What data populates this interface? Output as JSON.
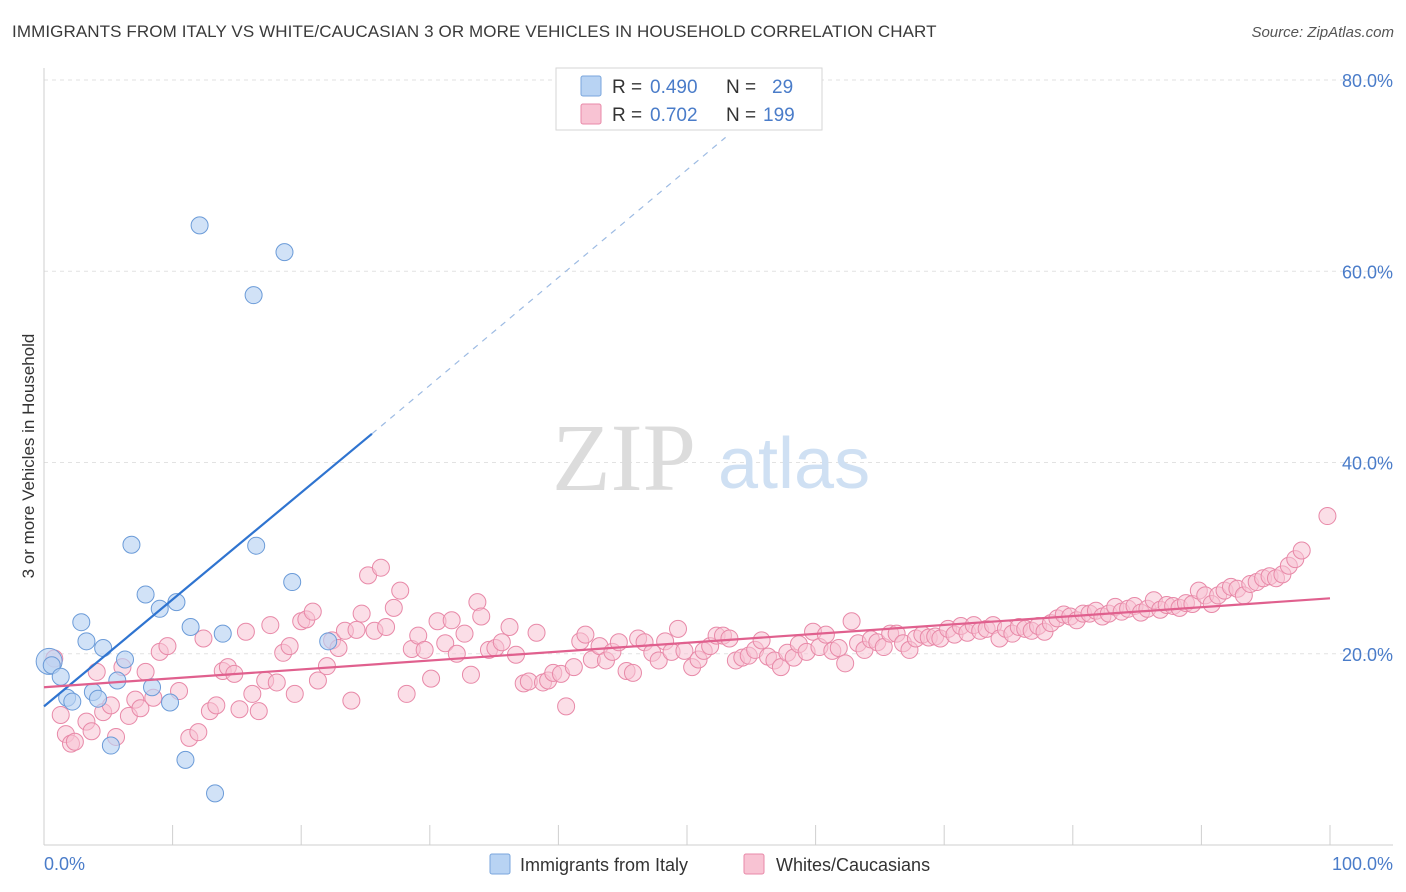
{
  "title": "IMMIGRANTS FROM ITALY VS WHITE/CAUCASIAN 3 OR MORE VEHICLES IN HOUSEHOLD CORRELATION CHART",
  "source": "Source: ZipAtlas.com",
  "watermark": {
    "zip": "ZIP",
    "atlas": "atlas"
  },
  "colors": {
    "blue": "#4a7cc9",
    "blue_fill": "#b8d3f3",
    "blue_line": "#2f74d0",
    "pink_fill": "#f8c3d3",
    "pink_line": "#e0608e",
    "pink_stroke": "#e889a8"
  },
  "legend": {
    "r_label": "R =",
    "n_label": "N =",
    "items": [
      {
        "r": "0.490",
        "n": "29"
      },
      {
        "r": "0.702",
        "n": "199"
      }
    ]
  },
  "bottom_legend": [
    "Immigrants from Italy",
    "Whites/Caucasians"
  ],
  "chart_data": {
    "type": "scatter",
    "title": "IMMIGRANTS FROM ITALY VS WHITE/CAUCASIAN 3 OR MORE VEHICLES IN HOUSEHOLD CORRELATION CHART",
    "xlabel": "",
    "ylabel": "3 or more Vehicles in Household",
    "xlim": [
      0,
      100
    ],
    "ylim": [
      0,
      80
    ],
    "x_tick_labels": [
      "0.0%",
      "100.0%"
    ],
    "y_tick_labels": [
      "20.0%",
      "40.0%",
      "60.0%",
      "80.0%"
    ],
    "y_ticks": [
      20,
      40,
      60,
      80
    ],
    "grid": true,
    "legend_position": "top-center",
    "series": [
      {
        "name": "Immigrants from Italy",
        "r": 0.49,
        "n": 29,
        "trend": {
          "x0": 0,
          "y0": 14.5,
          "x1": 25.5,
          "y1": 43,
          "dashed_to_x": 53,
          "dashed_to_y": 74
        },
        "points": [
          [
            0.4,
            19.2
          ],
          [
            0.6,
            18.8
          ],
          [
            1.3,
            17.6
          ],
          [
            1.8,
            15.4
          ],
          [
            2.2,
            15.0
          ],
          [
            2.9,
            23.3
          ],
          [
            3.3,
            21.3
          ],
          [
            3.8,
            16.0
          ],
          [
            4.2,
            15.3
          ],
          [
            4.6,
            20.6
          ],
          [
            5.2,
            10.4
          ],
          [
            5.7,
            17.2
          ],
          [
            6.3,
            19.4
          ],
          [
            6.8,
            31.4
          ],
          [
            7.9,
            26.2
          ],
          [
            8.4,
            16.5
          ],
          [
            9.0,
            24.7
          ],
          [
            9.8,
            14.9
          ],
          [
            10.3,
            25.4
          ],
          [
            11.0,
            8.9
          ],
          [
            11.4,
            22.8
          ],
          [
            12.1,
            64.8
          ],
          [
            13.3,
            5.4
          ],
          [
            13.9,
            22.1
          ],
          [
            16.3,
            57.5
          ],
          [
            16.5,
            31.3
          ],
          [
            18.7,
            62.0
          ],
          [
            19.3,
            27.5
          ],
          [
            22.1,
            21.3
          ]
        ]
      },
      {
        "name": "Whites/Caucasians",
        "r": 0.702,
        "n": 199,
        "trend": {
          "x0": 0,
          "y0": 16.5,
          "x1": 100,
          "y1": 25.8
        },
        "points": [
          [
            0.8,
            19.5
          ],
          [
            1.3,
            13.6
          ],
          [
            1.7,
            11.6
          ],
          [
            2.1,
            10.6
          ],
          [
            2.4,
            10.8
          ],
          [
            3.3,
            12.9
          ],
          [
            3.7,
            11.9
          ],
          [
            4.1,
            18.1
          ],
          [
            4.6,
            13.9
          ],
          [
            5.2,
            14.6
          ],
          [
            5.6,
            11.3
          ],
          [
            6.1,
            18.6
          ],
          [
            6.6,
            13.5
          ],
          [
            7.1,
            15.2
          ],
          [
            7.5,
            14.3
          ],
          [
            7.9,
            18.1
          ],
          [
            8.5,
            15.4
          ],
          [
            9.0,
            20.2
          ],
          [
            9.6,
            20.8
          ],
          [
            10.5,
            16.1
          ],
          [
            11.3,
            11.2
          ],
          [
            12.0,
            11.8
          ],
          [
            12.4,
            21.6
          ],
          [
            12.9,
            14.0
          ],
          [
            13.4,
            14.6
          ],
          [
            13.9,
            18.2
          ],
          [
            14.3,
            18.6
          ],
          [
            14.8,
            17.9
          ],
          [
            15.2,
            14.2
          ],
          [
            15.7,
            22.3
          ],
          [
            16.2,
            15.8
          ],
          [
            16.7,
            14.0
          ],
          [
            17.2,
            17.2
          ],
          [
            17.6,
            23.0
          ],
          [
            18.1,
            17.0
          ],
          [
            18.6,
            20.1
          ],
          [
            19.1,
            20.8
          ],
          [
            19.5,
            15.8
          ],
          [
            20.0,
            23.4
          ],
          [
            20.4,
            23.6
          ],
          [
            20.9,
            24.4
          ],
          [
            21.3,
            17.2
          ],
          [
            22.0,
            18.7
          ],
          [
            22.4,
            21.4
          ],
          [
            22.9,
            20.6
          ],
          [
            23.4,
            22.4
          ],
          [
            23.9,
            15.1
          ],
          [
            24.3,
            22.5
          ],
          [
            24.7,
            24.2
          ],
          [
            25.2,
            28.2
          ],
          [
            25.7,
            22.4
          ],
          [
            26.2,
            29.0
          ],
          [
            26.6,
            22.8
          ],
          [
            27.2,
            24.8
          ],
          [
            27.7,
            26.6
          ],
          [
            28.2,
            15.8
          ],
          [
            28.6,
            20.5
          ],
          [
            29.1,
            21.9
          ],
          [
            29.6,
            20.4
          ],
          [
            30.1,
            17.4
          ],
          [
            30.6,
            23.4
          ],
          [
            31.2,
            21.1
          ],
          [
            31.7,
            23.5
          ],
          [
            32.1,
            20.0
          ],
          [
            32.7,
            22.1
          ],
          [
            33.2,
            17.8
          ],
          [
            33.7,
            25.4
          ],
          [
            34.0,
            23.9
          ],
          [
            34.6,
            20.4
          ],
          [
            35.1,
            20.6
          ],
          [
            35.6,
            21.2
          ],
          [
            36.2,
            22.8
          ],
          [
            36.7,
            19.9
          ],
          [
            37.3,
            16.9
          ],
          [
            37.7,
            17.1
          ],
          [
            38.3,
            22.2
          ],
          [
            38.8,
            17.0
          ],
          [
            39.2,
            17.2
          ],
          [
            39.6,
            18.0
          ],
          [
            40.2,
            17.9
          ],
          [
            40.6,
            14.5
          ],
          [
            41.2,
            18.6
          ],
          [
            41.7,
            21.3
          ],
          [
            42.1,
            22.0
          ],
          [
            42.6,
            19.4
          ],
          [
            43.2,
            20.8
          ],
          [
            43.7,
            19.3
          ],
          [
            44.2,
            20.2
          ],
          [
            44.7,
            21.2
          ],
          [
            45.3,
            18.2
          ],
          [
            45.8,
            18.0
          ],
          [
            46.2,
            21.6
          ],
          [
            46.7,
            21.2
          ],
          [
            47.3,
            20.1
          ],
          [
            47.8,
            19.3
          ],
          [
            48.3,
            21.3
          ],
          [
            48.8,
            20.2
          ],
          [
            49.3,
            22.6
          ],
          [
            49.8,
            20.3
          ],
          [
            50.4,
            18.6
          ],
          [
            50.9,
            19.4
          ],
          [
            51.3,
            20.3
          ],
          [
            51.8,
            20.8
          ],
          [
            52.3,
            21.9
          ],
          [
            52.8,
            21.9
          ],
          [
            53.3,
            21.6
          ],
          [
            53.8,
            19.3
          ],
          [
            54.3,
            19.6
          ],
          [
            54.8,
            19.8
          ],
          [
            55.3,
            20.4
          ],
          [
            55.8,
            21.4
          ],
          [
            56.3,
            19.7
          ],
          [
            56.8,
            19.3
          ],
          [
            57.3,
            18.6
          ],
          [
            57.8,
            20.1
          ],
          [
            58.3,
            19.6
          ],
          [
            58.7,
            21.0
          ],
          [
            59.3,
            20.2
          ],
          [
            59.8,
            22.3
          ],
          [
            60.3,
            20.7
          ],
          [
            60.8,
            22.0
          ],
          [
            61.3,
            20.3
          ],
          [
            61.8,
            20.6
          ],
          [
            62.3,
            19.0
          ],
          [
            62.8,
            23.4
          ],
          [
            63.3,
            21.1
          ],
          [
            63.8,
            20.4
          ],
          [
            64.3,
            21.5
          ],
          [
            64.8,
            21.2
          ],
          [
            65.3,
            20.7
          ],
          [
            65.8,
            22.1
          ],
          [
            66.3,
            22.1
          ],
          [
            66.8,
            21.1
          ],
          [
            67.3,
            20.4
          ],
          [
            67.8,
            21.6
          ],
          [
            68.3,
            22.0
          ],
          [
            68.8,
            21.7
          ],
          [
            69.3,
            21.8
          ],
          [
            69.7,
            21.6
          ],
          [
            70.3,
            22.6
          ],
          [
            70.8,
            22.0
          ],
          [
            71.3,
            22.9
          ],
          [
            71.8,
            22.2
          ],
          [
            72.3,
            23.0
          ],
          [
            72.8,
            22.4
          ],
          [
            73.3,
            22.6
          ],
          [
            73.8,
            23.0
          ],
          [
            74.3,
            21.6
          ],
          [
            74.8,
            22.6
          ],
          [
            75.3,
            22.1
          ],
          [
            75.8,
            22.8
          ],
          [
            76.3,
            22.6
          ],
          [
            76.8,
            22.4
          ],
          [
            77.3,
            22.9
          ],
          [
            77.8,
            22.3
          ],
          [
            78.3,
            23.2
          ],
          [
            78.8,
            23.7
          ],
          [
            79.3,
            24.1
          ],
          [
            79.8,
            23.9
          ],
          [
            80.3,
            23.5
          ],
          [
            80.8,
            24.2
          ],
          [
            81.3,
            24.2
          ],
          [
            81.8,
            24.5
          ],
          [
            82.3,
            23.9
          ],
          [
            82.8,
            24.2
          ],
          [
            83.3,
            24.9
          ],
          [
            83.8,
            24.4
          ],
          [
            84.3,
            24.7
          ],
          [
            84.8,
            25.0
          ],
          [
            85.3,
            24.3
          ],
          [
            85.8,
            24.7
          ],
          [
            86.3,
            25.6
          ],
          [
            86.8,
            24.6
          ],
          [
            87.3,
            25.1
          ],
          [
            87.8,
            25.0
          ],
          [
            88.3,
            24.8
          ],
          [
            88.8,
            25.3
          ],
          [
            89.3,
            25.2
          ],
          [
            89.8,
            26.6
          ],
          [
            90.3,
            26.1
          ],
          [
            90.8,
            25.2
          ],
          [
            91.3,
            26.1
          ],
          [
            91.8,
            26.6
          ],
          [
            92.3,
            27.0
          ],
          [
            92.8,
            26.8
          ],
          [
            93.3,
            26.1
          ],
          [
            93.8,
            27.3
          ],
          [
            94.3,
            27.5
          ],
          [
            94.8,
            27.9
          ],
          [
            95.3,
            28.1
          ],
          [
            95.8,
            27.9
          ],
          [
            96.3,
            28.3
          ],
          [
            96.8,
            29.2
          ],
          [
            97.3,
            29.9
          ],
          [
            97.8,
            30.8
          ],
          [
            99.8,
            34.4
          ]
        ]
      }
    ]
  }
}
